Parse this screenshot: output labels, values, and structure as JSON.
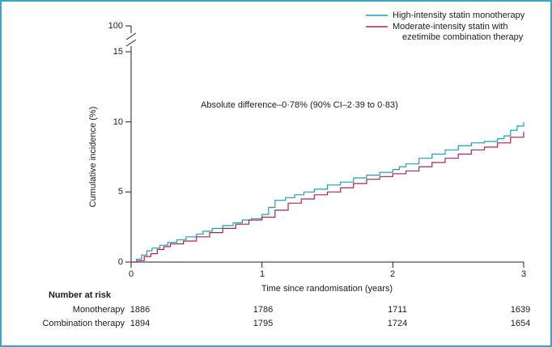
{
  "colors": {
    "frame": "#3aa6c4",
    "monotherapy": "#1f9fb5",
    "combination": "#ad2450",
    "axis": "#231f20"
  },
  "legend": {
    "items": [
      {
        "line1": "High-intensity statin monotherapy"
      },
      {
        "line1": "Moderate-intensity statin with",
        "line2": "ezetimibe combination therapy"
      }
    ]
  },
  "annotation": {
    "text": "Absolute difference–0·78% (90% CI–2·39 to 0·83)"
  },
  "axes": {
    "y_label": "Cumulative incidence (%)",
    "x_label": "Time since randomisation (years)",
    "y_ticks": [
      "0",
      "5",
      "10",
      "15"
    ],
    "y_top_tick": "100",
    "x_ticks": [
      "0",
      "1",
      "2",
      "3"
    ]
  },
  "risk_table": {
    "title": "Number at risk",
    "rows": [
      {
        "label": "Monotherapy",
        "values": [
          "1886",
          "1786",
          "1711",
          "1639"
        ]
      },
      {
        "label": "Combination therapy",
        "values": [
          "1894",
          "1795",
          "1724",
          "1654"
        ]
      }
    ]
  },
  "chart_data": {
    "type": "line",
    "subtype": "step",
    "title": "",
    "xlabel": "Time since randomisation (years)",
    "ylabel": "Cumulative incidence (%)",
    "xlim": [
      0,
      3
    ],
    "ylim": [
      0,
      15
    ],
    "axis_break": {
      "from": 15,
      "to": 100
    },
    "x_tick_values": [
      0,
      1,
      2,
      3
    ],
    "y_tick_values": [
      0,
      5,
      10,
      15
    ],
    "annotation": "Absolute difference–0·78% (90% CI–2·39 to 0·83)",
    "legend_position": "top-right",
    "series": [
      {
        "name": "High-intensity statin monotherapy",
        "color": "#1f9fb5",
        "x": [
          0,
          0.04,
          0.08,
          0.12,
          0.16,
          0.22,
          0.28,
          0.35,
          0.42,
          0.5,
          0.55,
          0.62,
          0.7,
          0.78,
          0.85,
          0.92,
          1.0,
          1.05,
          1.1,
          1.18,
          1.25,
          1.32,
          1.4,
          1.5,
          1.6,
          1.7,
          1.8,
          1.9,
          2.0,
          2.05,
          2.1,
          2.2,
          2.3,
          2.4,
          2.5,
          2.6,
          2.7,
          2.8,
          2.85,
          2.9,
          2.95,
          3.0
        ],
        "y": [
          0,
          0.2,
          0.5,
          0.8,
          1.0,
          1.2,
          1.4,
          1.6,
          1.8,
          2.0,
          2.2,
          2.4,
          2.6,
          2.8,
          3.0,
          3.1,
          3.4,
          3.9,
          4.4,
          4.6,
          4.8,
          5.0,
          5.2,
          5.5,
          5.7,
          6.0,
          6.2,
          6.4,
          6.6,
          6.8,
          7.0,
          7.4,
          7.7,
          8.0,
          8.3,
          8.5,
          8.6,
          8.8,
          9.0,
          9.4,
          9.7,
          10.0
        ]
      },
      {
        "name": "Moderate-intensity statin with ezetimibe combination therapy",
        "color": "#ad2450",
        "x": [
          0,
          0.05,
          0.1,
          0.15,
          0.2,
          0.25,
          0.3,
          0.4,
          0.5,
          0.6,
          0.7,
          0.8,
          0.9,
          1.0,
          1.1,
          1.2,
          1.3,
          1.4,
          1.5,
          1.6,
          1.7,
          1.8,
          1.9,
          2.0,
          2.1,
          2.2,
          2.3,
          2.4,
          2.5,
          2.6,
          2.7,
          2.8,
          2.9,
          3.0
        ],
        "y": [
          0,
          0.1,
          0.4,
          0.6,
          0.9,
          1.1,
          1.3,
          1.5,
          1.8,
          2.1,
          2.4,
          2.7,
          3.0,
          3.2,
          3.7,
          4.2,
          4.5,
          4.8,
          5.0,
          5.3,
          5.6,
          5.9,
          6.1,
          6.3,
          6.5,
          6.8,
          7.1,
          7.4,
          7.7,
          8.0,
          8.2,
          8.5,
          8.9,
          9.3
        ]
      }
    ],
    "number_at_risk": {
      "times": [
        0,
        1,
        2,
        3
      ],
      "rows": [
        {
          "label": "Monotherapy",
          "values": [
            1886,
            1786,
            1711,
            1639
          ]
        },
        {
          "label": "Combination therapy",
          "values": [
            1894,
            1795,
            1724,
            1654
          ]
        }
      ]
    }
  }
}
